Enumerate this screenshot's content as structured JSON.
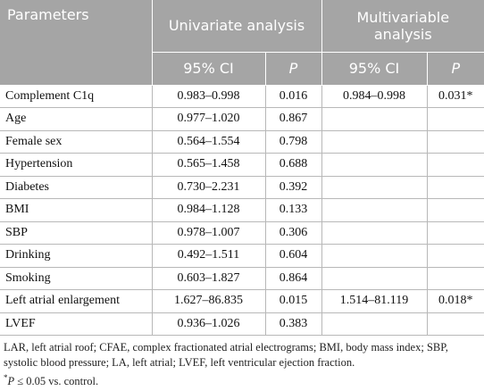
{
  "table": {
    "header": {
      "parameters": "Parameters",
      "univariate": "Univariate analysis",
      "multivariable": "Multivariable analysis",
      "columns": [
        "95% CI",
        "P",
        "95% CI",
        "P"
      ]
    },
    "rows": [
      {
        "parameter": "Complement C1q",
        "uni_ci": "0.983–0.998",
        "uni_p": "0.016",
        "multi_ci": "0.984–0.998",
        "multi_p": "0.031*"
      },
      {
        "parameter": "Age",
        "uni_ci": "0.977–1.020",
        "uni_p": "0.867"
      },
      {
        "parameter": "Female sex",
        "uni_ci": "0.564–1.554",
        "uni_p": "0.798"
      },
      {
        "parameter": "Hypertension",
        "uni_ci": "0.565–1.458",
        "uni_p": "0.688"
      },
      {
        "parameter": "Diabetes",
        "uni_ci": "0.730–2.231",
        "uni_p": "0.392"
      },
      {
        "parameter": "BMI",
        "uni_ci": "0.984–1.128",
        "uni_p": "0.133"
      },
      {
        "parameter": "SBP",
        "uni_ci": "0.978–1.007",
        "uni_p": "0.306"
      },
      {
        "parameter": "Drinking",
        "uni_ci": "0.492–1.511",
        "uni_p": "0.604"
      },
      {
        "parameter": "Smoking",
        "uni_ci": "0.603–1.827",
        "uni_p": "0.864"
      },
      {
        "parameter": "Left atrial enlargement",
        "uni_ci": "1.627–86.835",
        "uni_p": "0.015",
        "multi_ci": "1.514–81.119",
        "multi_p": "0.018*"
      },
      {
        "parameter": "LVEF",
        "uni_ci": "0.936–1.026",
        "uni_p": "0.383"
      }
    ],
    "footnotes": {
      "abbreviations": "LAR, left atrial roof; CFAE, complex fractionated atrial electrograms; BMI, body mass index; SBP, systolic blood pressure; LA, left atrial; LVEF, left ventricular ejection fraction.",
      "significance": {
        "mark": "*",
        "symbol": "P",
        "text": "≤ 0.05 vs. control."
      }
    }
  }
}
